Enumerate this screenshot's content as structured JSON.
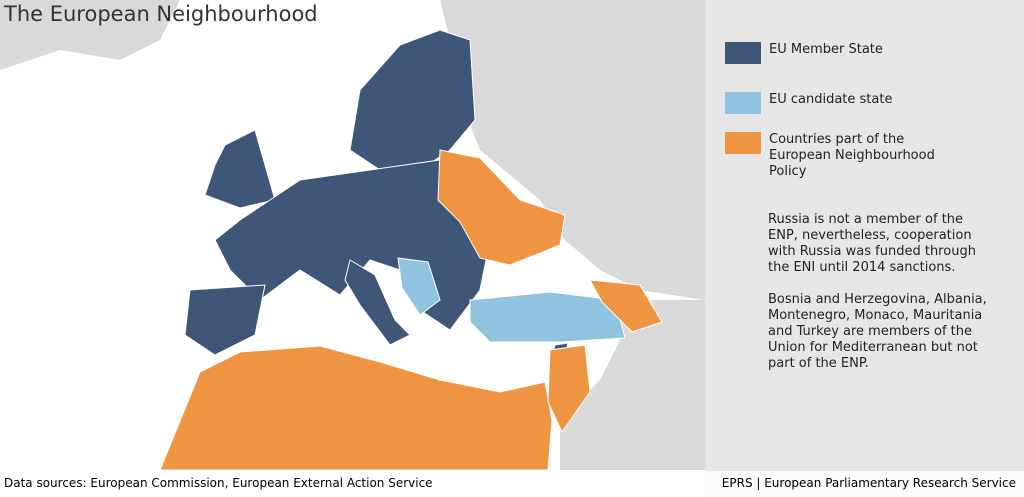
{
  "header": {
    "title": "The European Neighbourhood"
  },
  "legend": {
    "items": [
      {
        "label": "EU Member State",
        "color": "#3e5678"
      },
      {
        "label": "EU candidate state",
        "color": "#8fc3e0"
      },
      {
        "label": "Countries part of the European Neighbourhood Policy",
        "color": "#ef9440"
      }
    ]
  },
  "notes": [
    "Russia is not a member of the ENP, nevertheless, cooperation with Russia was funded through the ENI until 2014 sanctions.",
    "Bosnia and Herzegovina, Albania, Montenegro, Monaco, Mauritania and Turkey are members of the Union for Mediterranean but not part of the ENP."
  ],
  "footer": {
    "sources": "Data sources: European Commission, European External Action Service",
    "credit": "EPRS | European Parliamentary Research Service"
  }
}
